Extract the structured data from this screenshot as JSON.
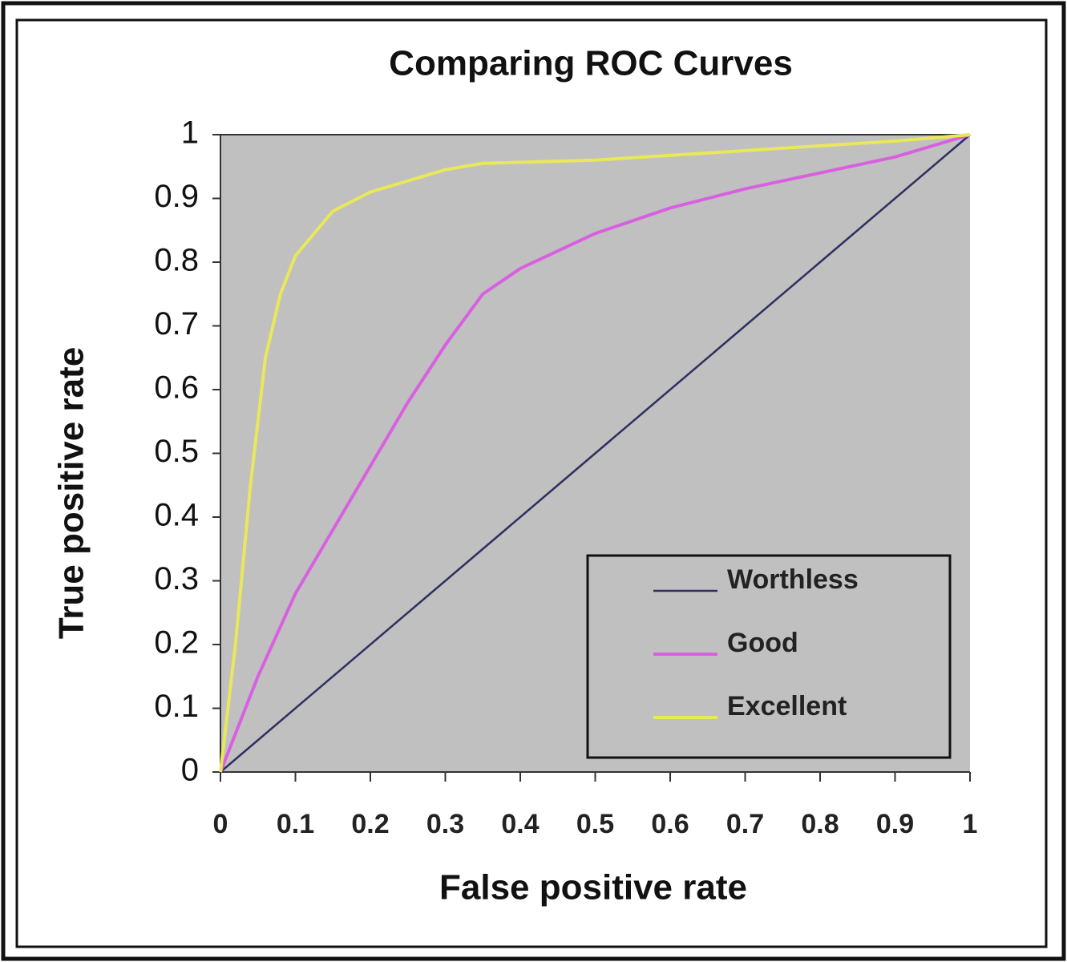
{
  "chart_data": {
    "type": "line",
    "title": "Comparing ROC Curves",
    "x_label": "False positive rate",
    "y_label": "True positive rate",
    "xlim": [
      0,
      1
    ],
    "ylim": [
      0,
      1
    ],
    "xticks": [
      0,
      0.1,
      0.2,
      0.3,
      0.4,
      0.5,
      0.6,
      0.7,
      0.8,
      0.9,
      1
    ],
    "yticks": [
      0,
      0.1,
      0.2,
      0.3,
      0.4,
      0.5,
      0.6,
      0.7,
      0.8,
      0.9,
      1
    ],
    "grid": false,
    "plot_background": "#c0c0c0",
    "legend_position": "lower right",
    "series": [
      {
        "name": "Worthless",
        "color": "#2e2e60",
        "x": [
          0,
          1
        ],
        "values": [
          0,
          1
        ]
      },
      {
        "name": "Good",
        "color": "#d860e0",
        "x": [
          0,
          0.05,
          0.1,
          0.15,
          0.2,
          0.25,
          0.3,
          0.35,
          0.4,
          0.5,
          0.6,
          0.7,
          0.8,
          0.9,
          1
        ],
        "values": [
          0,
          0.15,
          0.28,
          0.38,
          0.48,
          0.58,
          0.67,
          0.75,
          0.79,
          0.845,
          0.885,
          0.915,
          0.94,
          0.965,
          1
        ]
      },
      {
        "name": "Excellent",
        "color": "#e8e85a",
        "x": [
          0,
          0.02,
          0.04,
          0.06,
          0.08,
          0.1,
          0.15,
          0.2,
          0.3,
          0.35,
          0.5,
          0.7,
          0.9,
          1
        ],
        "values": [
          0,
          0.2,
          0.45,
          0.65,
          0.75,
          0.81,
          0.88,
          0.91,
          0.945,
          0.955,
          0.96,
          0.975,
          0.99,
          1
        ]
      }
    ]
  }
}
